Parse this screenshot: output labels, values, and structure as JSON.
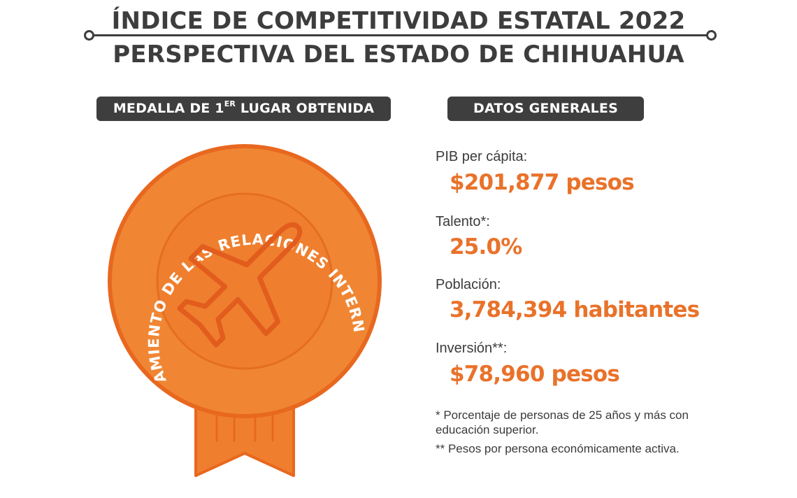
{
  "header": {
    "title": "ÍNDICE DE COMPETITIVIDAD ESTATAL 2022",
    "subtitle": "PERSPECTIVA DEL ESTADO DE CHIHUAHUA"
  },
  "medal_section": {
    "heading_main": "MEDALLA  DE 1",
    "heading_sup": "ER",
    "heading_end": " LUGAR OBTENIDA",
    "medal_text": "APROVECHAMIENTO DE LAS RELACIONES INTERNACIONALES",
    "icon": "airplane-icon"
  },
  "data_section": {
    "heading": "DATOS GENERALES",
    "items": [
      {
        "label": "PIB per cápita:",
        "value": "$201,877 pesos"
      },
      {
        "label": "Talento*:",
        "value": "25.0%"
      },
      {
        "label": "Población:",
        "value": "3,784,394 habitantes"
      },
      {
        "label": "Inversión**:",
        "value": "$78,960 pesos"
      }
    ],
    "notes": [
      "* Porcentaje de personas de 25 años y más con educación superior.",
      "** Pesos por persona económicamente activa."
    ]
  },
  "colors": {
    "accent": "#e9722a",
    "medal_fill": "#ef7f2e",
    "medal_outer": "#e8681f",
    "dark": "#3e3e3e"
  }
}
